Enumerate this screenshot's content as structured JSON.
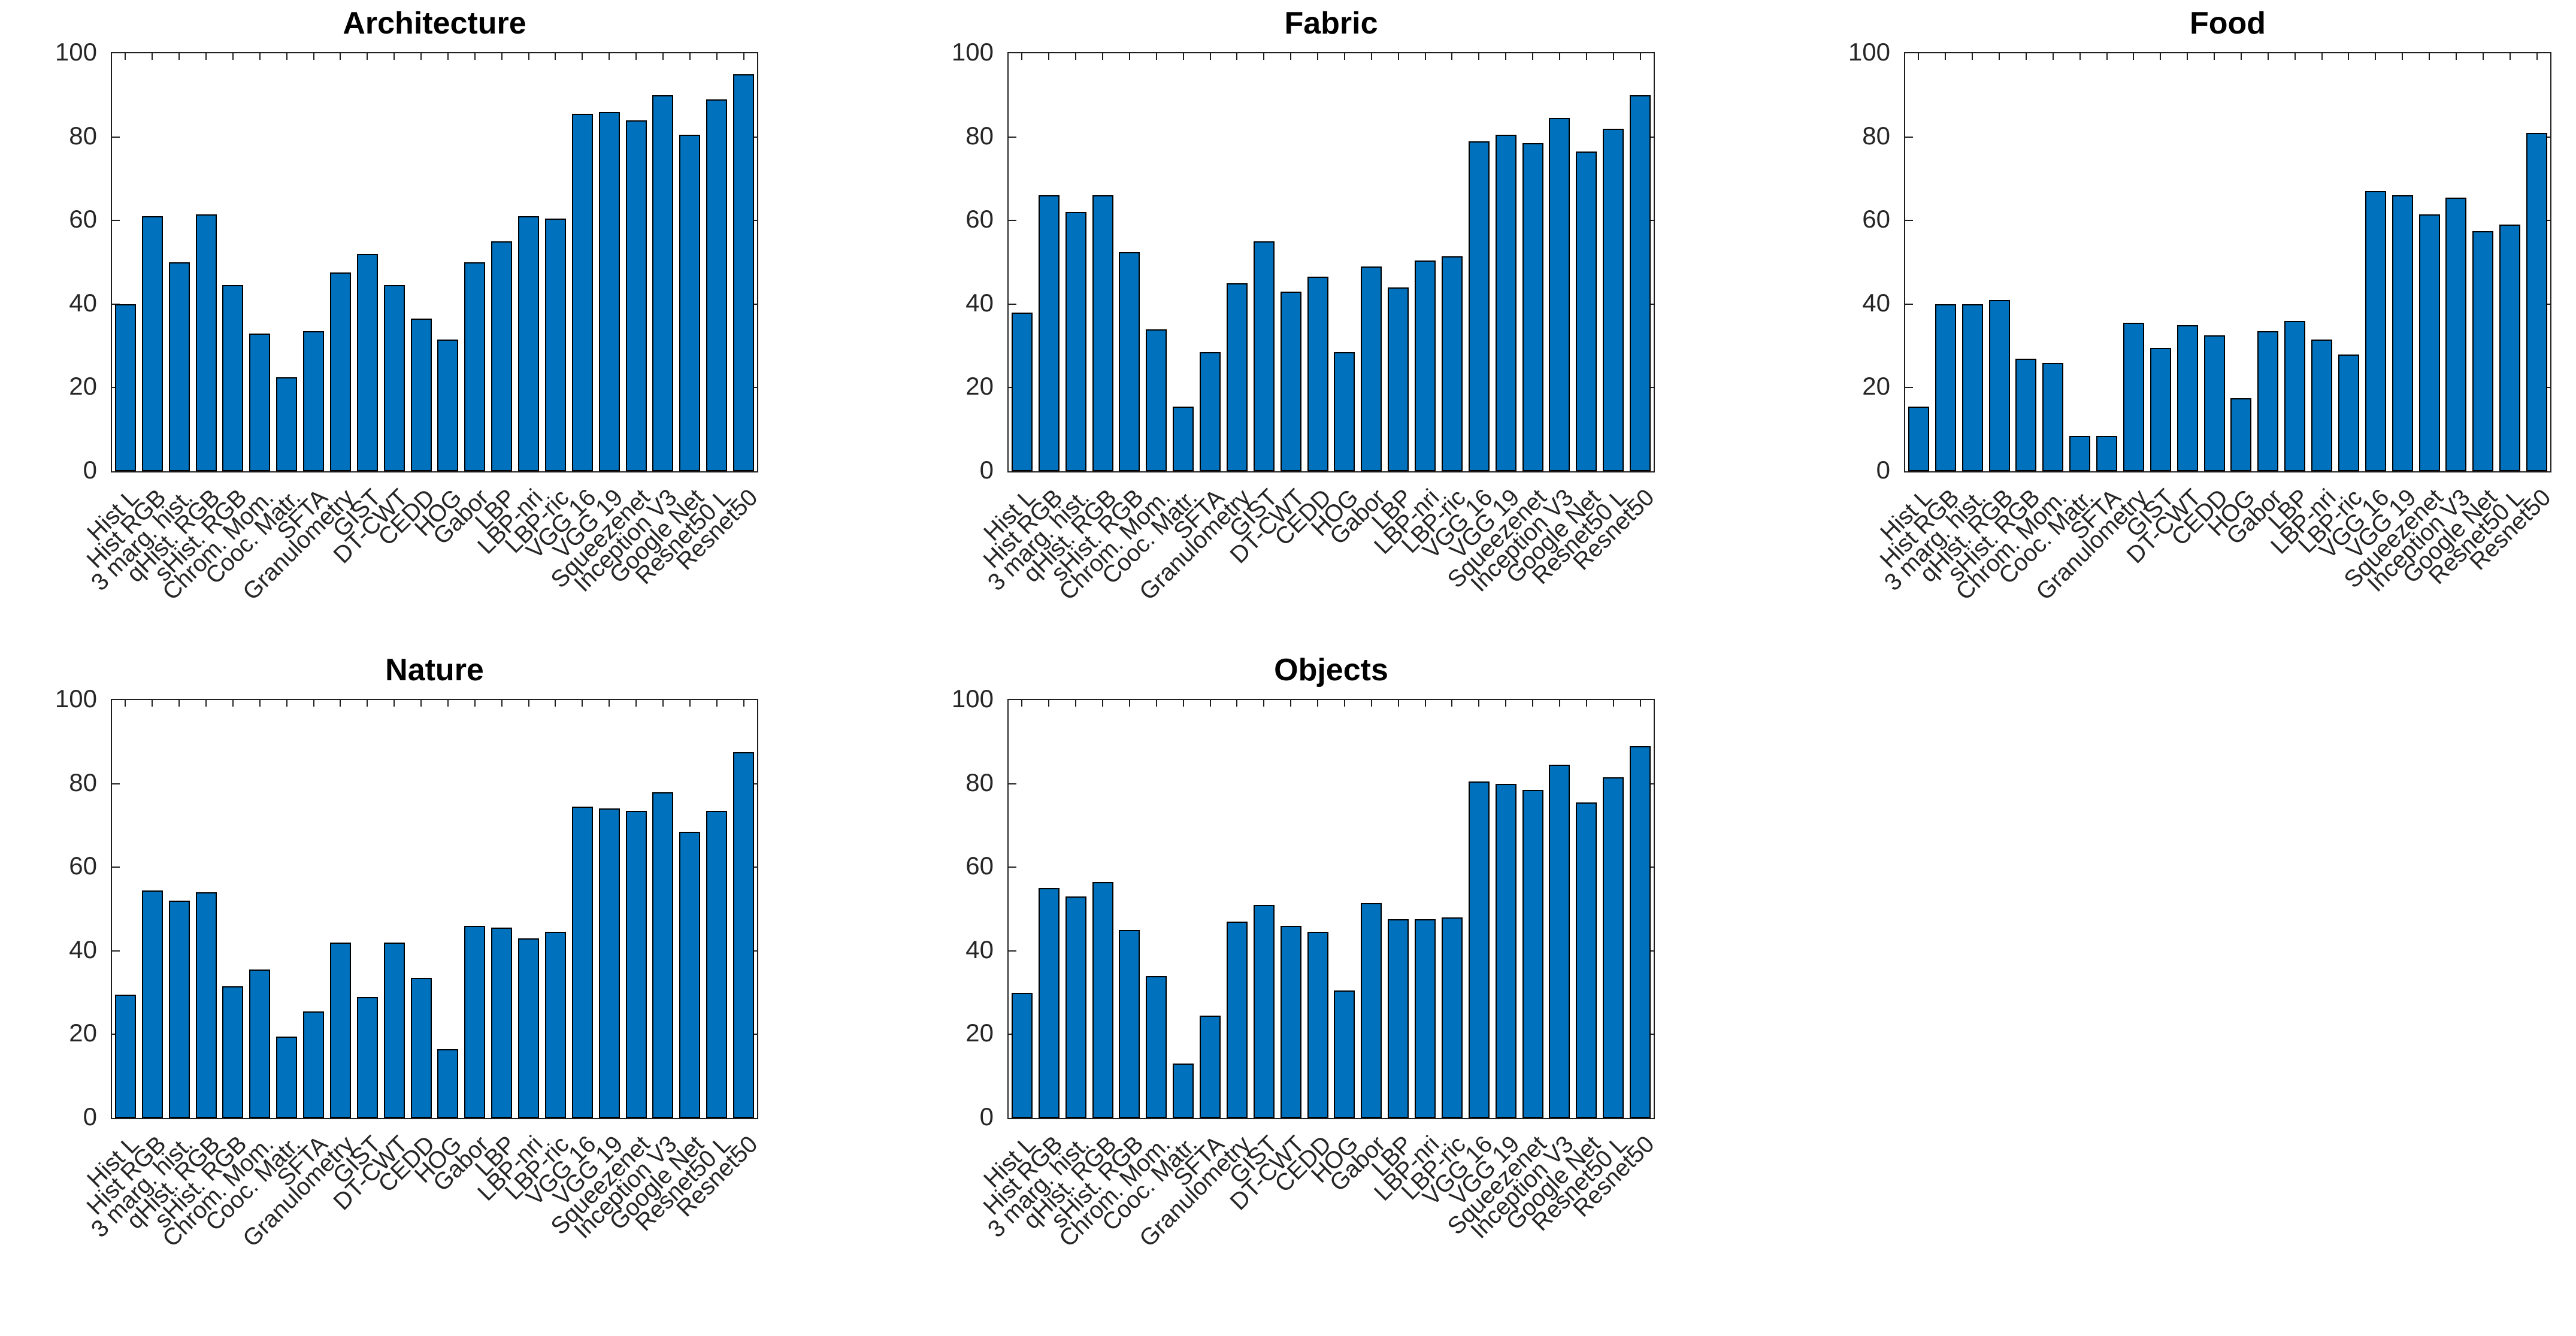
{
  "figure": {
    "background": "#ffffff",
    "description_titles": [
      "Architecture",
      "Fabric",
      "Food",
      "Nature",
      "Objects"
    ]
  },
  "style": {
    "bar_color": "#0072BD",
    "bar_edge_color": "#000000",
    "axis_color": "#1f1f1f",
    "tick_label_color": "#262626",
    "title_color": "#000000"
  },
  "chart_data": [
    {
      "type": "bar",
      "title": "Architecture",
      "xlabel": "",
      "ylabel": "",
      "ylim": [
        0,
        100
      ],
      "y_ticks": [
        0,
        20,
        40,
        60,
        80,
        100
      ],
      "grid": false,
      "legend": "none",
      "categories": [
        "Hist L",
        "Hist RGB",
        "3 marg. hist.",
        "qHist. RGB",
        "sHist. RGB",
        "Chrom. Mom.",
        "Cooc. Matr.",
        "SFTA",
        "Granulometry",
        "GIST",
        "DT-CWT",
        "CEDD",
        "HOG",
        "Gabor",
        "LBP",
        "LBP-nri",
        "LBP-ric",
        "VGG 16",
        "VGG 19",
        "Squeezenet",
        "Inception V3",
        "Google Net",
        "Resnet50 L",
        "Resnet50"
      ],
      "values": [
        40,
        61,
        50,
        61.5,
        44.5,
        33,
        22.5,
        33.5,
        47.5,
        52,
        44.5,
        36.5,
        31.5,
        50,
        55,
        61,
        60.5,
        85.5,
        86,
        84,
        90,
        80.5,
        89,
        95
      ]
    },
    {
      "type": "bar",
      "title": "Fabric",
      "xlabel": "",
      "ylabel": "",
      "ylim": [
        0,
        100
      ],
      "y_ticks": [
        0,
        20,
        40,
        60,
        80,
        100
      ],
      "grid": false,
      "legend": "none",
      "categories": [
        "Hist L",
        "Hist RGB",
        "3 marg. hist.",
        "qHist. RGB",
        "sHist. RGB",
        "Chrom. Mom.",
        "Cooc. Matr.",
        "SFTA",
        "Granulometry",
        "GIST",
        "DT-CWT",
        "CEDD",
        "HOG",
        "Gabor",
        "LBP",
        "LBP-nri",
        "LBP-ric",
        "VGG 16",
        "VGG 19",
        "Squeezenet",
        "Inception V3",
        "Google Net",
        "Resnet50 L",
        "Resnet50"
      ],
      "values": [
        38,
        66,
        62,
        66,
        52.5,
        34,
        15.5,
        28.5,
        45,
        55,
        43,
        46.5,
        28.5,
        49,
        44,
        50.5,
        51.5,
        79,
        80.5,
        78.5,
        84.5,
        76.5,
        82,
        90
      ]
    },
    {
      "type": "bar",
      "title": "Food",
      "xlabel": "",
      "ylabel": "",
      "ylim": [
        0,
        100
      ],
      "y_ticks": [
        0,
        20,
        40,
        60,
        80,
        100
      ],
      "grid": false,
      "legend": "none",
      "categories": [
        "Hist L",
        "Hist RGB",
        "3 marg. hist.",
        "qHist. RGB",
        "sHist. RGB",
        "Chrom. Mom.",
        "Cooc. Matr.",
        "SFTA",
        "Granulometry",
        "GIST",
        "DT-CWT",
        "CEDD",
        "HOG",
        "Gabor",
        "LBP",
        "LBP-nri",
        "LBP-ric",
        "VGG 16",
        "VGG 19",
        "Squeezenet",
        "Inception V3",
        "Google Net",
        "Resnet50 L",
        "Resnet50"
      ],
      "values": [
        15.5,
        40,
        40,
        41,
        27,
        26,
        8.5,
        8.5,
        35.5,
        29.5,
        35,
        32.5,
        17.5,
        33.5,
        36,
        31.5,
        28,
        67,
        66,
        61.5,
        65.5,
        57.5,
        59,
        81
      ]
    },
    {
      "type": "bar",
      "title": "Nature",
      "xlabel": "",
      "ylabel": "",
      "ylim": [
        0,
        100
      ],
      "y_ticks": [
        0,
        20,
        40,
        60,
        80,
        100
      ],
      "grid": false,
      "legend": "none",
      "categories": [
        "Hist L",
        "Hist RGB",
        "3 marg. hist.",
        "qHist. RGB",
        "sHist. RGB",
        "Chrom. Mom.",
        "Cooc. Matr.",
        "SFTA",
        "Granulometry",
        "GIST",
        "DT-CWT",
        "CEDD",
        "HOG",
        "Gabor",
        "LBP",
        "LBP-nri",
        "LBP-ric",
        "VGG 16",
        "VGG 19",
        "Squeezenet",
        "Inception V3",
        "Google Net",
        "Resnet50 L",
        "Resnet50"
      ],
      "values": [
        29.5,
        54.5,
        52,
        54,
        31.5,
        35.5,
        19.5,
        25.5,
        42,
        29,
        42,
        33.5,
        16.5,
        46,
        45.5,
        43,
        44.5,
        74.5,
        74,
        73.5,
        78,
        68.5,
        73.5,
        87.5
      ]
    },
    {
      "type": "bar",
      "title": "Objects",
      "xlabel": "",
      "ylabel": "",
      "ylim": [
        0,
        100
      ],
      "y_ticks": [
        0,
        20,
        40,
        60,
        80,
        100
      ],
      "grid": false,
      "legend": "none",
      "categories": [
        "Hist L",
        "Hist RGB",
        "3 marg. hist.",
        "qHist. RGB",
        "sHist. RGB",
        "Chrom. Mom.",
        "Cooc. Matr.",
        "SFTA",
        "Granulometry",
        "GIST",
        "DT-CWT",
        "CEDD",
        "HOG",
        "Gabor",
        "LBP",
        "LBP-nri",
        "LBP-ric",
        "VGG 16",
        "VGG 19",
        "Squeezenet",
        "Inception V3",
        "Google Net",
        "Resnet50 L",
        "Resnet50"
      ],
      "values": [
        30,
        55,
        53,
        56.5,
        45,
        34,
        13,
        24.5,
        47,
        51,
        46,
        44.5,
        30.5,
        51.5,
        47.5,
        47.5,
        48,
        80.5,
        80,
        78.5,
        84.5,
        75.5,
        81.5,
        89
      ]
    }
  ]
}
